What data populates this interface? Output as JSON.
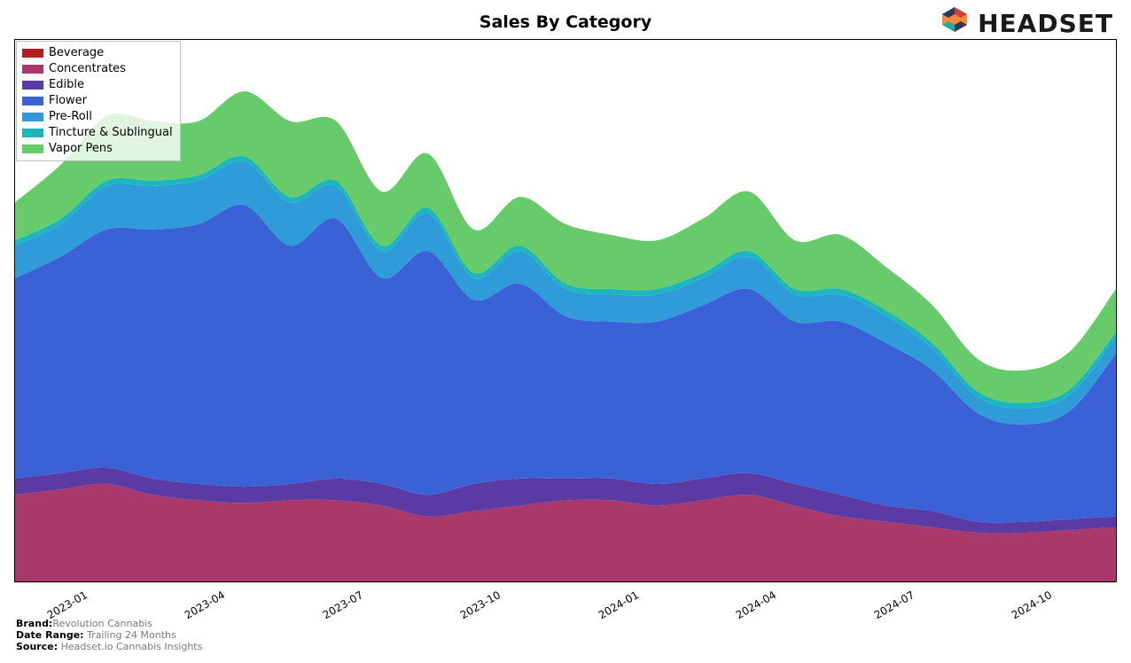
{
  "title": "Sales By Category",
  "logo_text": "HEADSET",
  "meta": {
    "brand_label": "Brand:",
    "brand_value": "Revolution Cannabis",
    "date_range_label": "Date Range:",
    "date_range_value": "Trailing 24 Months",
    "source_label": "Source:",
    "source_value": "Headset.io Cannabis Insights"
  },
  "chart": {
    "type": "area",
    "background_color": "#ffffff",
    "border_color": "#000000",
    "title_fontsize": 19,
    "title_fontweight": "bold",
    "tick_fontsize": 12,
    "tick_rotation_deg": -30,
    "xlim": [
      0,
      24
    ],
    "ylim": [
      0,
      100
    ],
    "x_tick_positions": [
      1.5,
      4.5,
      7.5,
      10.5,
      13.5,
      16.5,
      19.5,
      22.5,
      24
    ],
    "x_tick_labels": [
      "2023-01",
      "2023-04",
      "2023-07",
      "2023-10",
      "2024-01",
      "2024-04",
      "2024-07",
      "2024-10",
      ""
    ],
    "legend": {
      "position": "upper left",
      "border_color": "#bfbfbf",
      "background_color": "rgba(255,255,255,0.8)",
      "fontsize": 13
    },
    "series": [
      {
        "name": "Beverage",
        "color": "#b11f24",
        "values": [
          0,
          0,
          0,
          0,
          0,
          0,
          0,
          0,
          0,
          0,
          0,
          0,
          0,
          0,
          0,
          0,
          0,
          0,
          0,
          0,
          0,
          0,
          0,
          0,
          0
        ]
      },
      {
        "name": "Concentrates",
        "color": "#a8396a",
        "values": [
          16,
          17,
          18,
          16,
          15,
          14.5,
          15,
          15,
          14,
          12,
          13,
          14,
          15,
          15,
          14,
          15,
          16,
          14,
          12,
          11,
          10,
          9,
          9,
          9.5,
          10
        ]
      },
      {
        "name": "Edible",
        "color": "#5a3aa3",
        "values": [
          3,
          3,
          3,
          3,
          3,
          3,
          3,
          4,
          4,
          4,
          5,
          5,
          4,
          4,
          4,
          4,
          4,
          4,
          4,
          3,
          3,
          2,
          2,
          2,
          2
        ]
      },
      {
        "name": "Flower",
        "color": "#3a62d6",
        "values": [
          37,
          40,
          44,
          46,
          48,
          52,
          44,
          48,
          38,
          45,
          34,
          36,
          30,
          29,
          30,
          32,
          34,
          30,
          32,
          30,
          26,
          20,
          18,
          20,
          30
        ]
      },
      {
        "name": "Pre-Roll",
        "color": "#2f9bd8",
        "values": [
          6,
          6,
          8,
          8,
          8,
          8,
          8,
          6,
          5,
          7,
          4,
          6,
          5,
          5,
          5,
          5,
          6,
          5,
          5,
          5,
          4,
          3,
          3,
          3,
          3
        ]
      },
      {
        "name": "Tincture & Sublingual",
        "color": "#1cb7bd",
        "values": [
          1,
          1,
          1,
          1,
          1,
          1,
          1,
          1,
          1,
          1,
          1,
          1,
          1,
          1,
          1,
          1,
          1,
          1,
          1,
          1,
          1,
          1,
          1,
          1,
          1
        ]
      },
      {
        "name": "Vapor Pens",
        "color": "#67cb6b",
        "values": [
          7,
          10,
          12,
          11,
          10,
          12,
          14,
          11,
          10,
          10,
          8,
          9,
          11,
          10,
          9,
          10,
          11,
          9,
          10,
          8,
          7,
          6,
          6,
          7,
          8
        ]
      }
    ]
  },
  "logo_colors": {
    "orange": "#f58a3c",
    "red": "#d73a3a",
    "navy": "#2a3a5a",
    "teal": "#2aa8a0"
  }
}
